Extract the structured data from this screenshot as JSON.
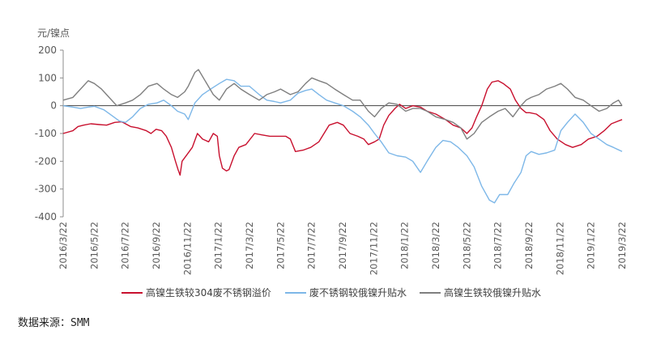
{
  "chart_data": {
    "type": "line",
    "y_unit_label": "元/镍点",
    "ylim": [
      -400,
      200
    ],
    "yticks": [
      200,
      100,
      0,
      -100,
      -200,
      -300,
      -400
    ],
    "x_range": [
      "2016-03-22",
      "2019-03-22"
    ],
    "x_tick_labels": [
      "2016/3/22",
      "2016/5/22",
      "2016/7/22",
      "2016/9/22",
      "2016/11/22",
      "2017/1/22",
      "2017/3/22",
      "2017/5/22",
      "2017/7/22",
      "2017/9/22",
      "2017/11/22",
      "2018/1/22",
      "2018/3/22",
      "2018/5/22",
      "2018/7/22",
      "2018/9/22",
      "2018/11/22",
      "2019/1/22",
      "2019/3/22"
    ],
    "grid": false,
    "legend_position": "bottom",
    "series": [
      {
        "name": "高镍生铁较304废不锈钢溢价",
        "color": "#c8102e",
        "points": [
          [
            "2016-03-22",
            -100
          ],
          [
            "2016-04-10",
            -90
          ],
          [
            "2016-04-20",
            -75
          ],
          [
            "2016-05-01",
            -70
          ],
          [
            "2016-05-15",
            -65
          ],
          [
            "2016-06-01",
            -68
          ],
          [
            "2016-06-15",
            -70
          ],
          [
            "2016-07-01",
            -60
          ],
          [
            "2016-07-15",
            -58
          ],
          [
            "2016-08-01",
            -75
          ],
          [
            "2016-08-15",
            -80
          ],
          [
            "2016-09-01",
            -90
          ],
          [
            "2016-09-10",
            -100
          ],
          [
            "2016-09-20",
            -85
          ],
          [
            "2016-10-01",
            -90
          ],
          [
            "2016-10-10",
            -110
          ],
          [
            "2016-10-20",
            -150
          ],
          [
            "2016-10-28",
            -200
          ],
          [
            "2016-11-02",
            -230
          ],
          [
            "2016-11-06",
            -250
          ],
          [
            "2016-11-10",
            -200
          ],
          [
            "2016-11-20",
            -175
          ],
          [
            "2016-11-30",
            -150
          ],
          [
            "2016-12-10",
            -100
          ],
          [
            "2016-12-20",
            -120
          ],
          [
            "2017-01-01",
            -130
          ],
          [
            "2017-01-10",
            -100
          ],
          [
            "2017-01-18",
            -110
          ],
          [
            "2017-01-22",
            -180
          ],
          [
            "2017-01-28",
            -225
          ],
          [
            "2017-02-05",
            -235
          ],
          [
            "2017-02-10",
            -230
          ],
          [
            "2017-02-20",
            -180
          ],
          [
            "2017-03-01",
            -150
          ],
          [
            "2017-03-15",
            -140
          ],
          [
            "2017-04-01",
            -100
          ],
          [
            "2017-04-15",
            -105
          ],
          [
            "2017-05-01",
            -110
          ],
          [
            "2017-05-15",
            -110
          ],
          [
            "2017-06-01",
            -110
          ],
          [
            "2017-06-10",
            -120
          ],
          [
            "2017-06-20",
            -165
          ],
          [
            "2017-07-05",
            -160
          ],
          [
            "2017-07-20",
            -150
          ],
          [
            "2017-08-05",
            -130
          ],
          [
            "2017-08-15",
            -100
          ],
          [
            "2017-08-25",
            -70
          ],
          [
            "2017-09-10",
            -60
          ],
          [
            "2017-09-22",
            -70
          ],
          [
            "2017-10-05",
            -100
          ],
          [
            "2017-10-20",
            -110
          ],
          [
            "2017-11-01",
            -120
          ],
          [
            "2017-11-10",
            -140
          ],
          [
            "2017-11-22",
            -130
          ],
          [
            "2017-12-01",
            -120
          ],
          [
            "2017-12-10",
            -70
          ],
          [
            "2017-12-20",
            -35
          ],
          [
            "2018-01-01",
            -10
          ],
          [
            "2018-01-10",
            5
          ],
          [
            "2018-01-22",
            -10
          ],
          [
            "2018-02-05",
            0
          ],
          [
            "2018-02-20",
            -5
          ],
          [
            "2018-03-05",
            -20
          ],
          [
            "2018-03-22",
            -30
          ],
          [
            "2018-04-10",
            -50
          ],
          [
            "2018-04-25",
            -70
          ],
          [
            "2018-05-10",
            -80
          ],
          [
            "2018-05-22",
            -100
          ],
          [
            "2018-06-01",
            -80
          ],
          [
            "2018-06-10",
            -40
          ],
          [
            "2018-06-20",
            0
          ],
          [
            "2018-07-01",
            60
          ],
          [
            "2018-07-10",
            85
          ],
          [
            "2018-07-22",
            90
          ],
          [
            "2018-08-01",
            80
          ],
          [
            "2018-08-15",
            60
          ],
          [
            "2018-08-25",
            20
          ],
          [
            "2018-09-05",
            -10
          ],
          [
            "2018-09-15",
            -25
          ],
          [
            "2018-09-22",
            -25
          ],
          [
            "2018-10-05",
            -30
          ],
          [
            "2018-10-20",
            -50
          ],
          [
            "2018-11-01",
            -90
          ],
          [
            "2018-11-15",
            -120
          ],
          [
            "2018-12-01",
            -140
          ],
          [
            "2018-12-15",
            -150
          ],
          [
            "2019-01-01",
            -140
          ],
          [
            "2019-01-15",
            -120
          ],
          [
            "2019-02-01",
            -110
          ],
          [
            "2019-02-15",
            -90
          ],
          [
            "2019-03-01",
            -65
          ],
          [
            "2019-03-22",
            -50
          ]
        ]
      },
      {
        "name": "废不锈钢较俄镍升贴水",
        "color": "#7db7e8",
        "points": [
          [
            "2016-03-22",
            0
          ],
          [
            "2016-04-10",
            -5
          ],
          [
            "2016-04-25",
            -10
          ],
          [
            "2016-05-10",
            -5
          ],
          [
            "2016-05-22",
            -2
          ],
          [
            "2016-06-10",
            -15
          ],
          [
            "2016-06-25",
            -35
          ],
          [
            "2016-07-10",
            -55
          ],
          [
            "2016-07-22",
            -60
          ],
          [
            "2016-08-05",
            -40
          ],
          [
            "2016-08-20",
            -10
          ],
          [
            "2016-09-05",
            5
          ],
          [
            "2016-09-22",
            10
          ],
          [
            "2016-10-05",
            20
          ],
          [
            "2016-10-20",
            0
          ],
          [
            "2016-11-01",
            -20
          ],
          [
            "2016-11-15",
            -30
          ],
          [
            "2016-11-22",
            -50
          ],
          [
            "2016-12-05",
            10
          ],
          [
            "2016-12-20",
            40
          ],
          [
            "2017-01-05",
            60
          ],
          [
            "2017-01-22",
            80
          ],
          [
            "2017-02-05",
            95
          ],
          [
            "2017-02-20",
            90
          ],
          [
            "2017-03-05",
            70
          ],
          [
            "2017-03-22",
            70
          ],
          [
            "2017-04-10",
            40
          ],
          [
            "2017-04-25",
            20
          ],
          [
            "2017-05-10",
            15
          ],
          [
            "2017-05-22",
            10
          ],
          [
            "2017-06-10",
            20
          ],
          [
            "2017-06-25",
            45
          ],
          [
            "2017-07-10",
            55
          ],
          [
            "2017-07-22",
            60
          ],
          [
            "2017-08-05",
            40
          ],
          [
            "2017-08-20",
            20
          ],
          [
            "2017-09-05",
            10
          ],
          [
            "2017-09-22",
            0
          ],
          [
            "2017-10-10",
            -20
          ],
          [
            "2017-10-25",
            -40
          ],
          [
            "2017-11-10",
            -70
          ],
          [
            "2017-11-22",
            -100
          ],
          [
            "2017-12-05",
            -130
          ],
          [
            "2017-12-20",
            -170
          ],
          [
            "2018-01-05",
            -180
          ],
          [
            "2018-01-22",
            -185
          ],
          [
            "2018-02-05",
            -200
          ],
          [
            "2018-02-20",
            -240
          ],
          [
            "2018-03-05",
            -200
          ],
          [
            "2018-03-22",
            -150
          ],
          [
            "2018-04-05",
            -125
          ],
          [
            "2018-04-20",
            -130
          ],
          [
            "2018-05-05",
            -150
          ],
          [
            "2018-05-22",
            -180
          ],
          [
            "2018-06-05",
            -220
          ],
          [
            "2018-06-20",
            -290
          ],
          [
            "2018-07-05",
            -340
          ],
          [
            "2018-07-15",
            -350
          ],
          [
            "2018-07-25",
            -320
          ],
          [
            "2018-08-10",
            -320
          ],
          [
            "2018-08-22",
            -280
          ],
          [
            "2018-09-05",
            -240
          ],
          [
            "2018-09-15",
            -180
          ],
          [
            "2018-09-25",
            -165
          ],
          [
            "2018-10-10",
            -175
          ],
          [
            "2018-10-25",
            -170
          ],
          [
            "2018-11-10",
            -160
          ],
          [
            "2018-11-22",
            -90
          ],
          [
            "2018-12-05",
            -60
          ],
          [
            "2018-12-20",
            -30
          ],
          [
            "2019-01-05",
            -60
          ],
          [
            "2019-01-20",
            -100
          ],
          [
            "2019-02-05",
            -120
          ],
          [
            "2019-02-20",
            -140
          ],
          [
            "2019-03-05",
            -150
          ],
          [
            "2019-03-22",
            -165
          ]
        ]
      },
      {
        "name": "高镍生铁较俄镍升贴水",
        "color": "#7f7f7f",
        "points": [
          [
            "2016-03-22",
            20
          ],
          [
            "2016-04-10",
            30
          ],
          [
            "2016-04-25",
            60
          ],
          [
            "2016-05-10",
            90
          ],
          [
            "2016-05-22",
            80
          ],
          [
            "2016-06-05",
            60
          ],
          [
            "2016-06-20",
            30
          ],
          [
            "2016-07-05",
            0
          ],
          [
            "2016-07-22",
            10
          ],
          [
            "2016-08-05",
            20
          ],
          [
            "2016-08-20",
            40
          ],
          [
            "2016-09-05",
            70
          ],
          [
            "2016-09-22",
            80
          ],
          [
            "2016-10-05",
            60
          ],
          [
            "2016-10-20",
            40
          ],
          [
            "2016-11-01",
            30
          ],
          [
            "2016-11-15",
            50
          ],
          [
            "2016-11-22",
            70
          ],
          [
            "2016-12-05",
            120
          ],
          [
            "2016-12-12",
            130
          ],
          [
            "2016-12-25",
            90
          ],
          [
            "2017-01-10",
            40
          ],
          [
            "2017-01-22",
            20
          ],
          [
            "2017-02-05",
            60
          ],
          [
            "2017-02-20",
            80
          ],
          [
            "2017-03-05",
            60
          ],
          [
            "2017-03-22",
            40
          ],
          [
            "2017-04-10",
            20
          ],
          [
            "2017-04-25",
            40
          ],
          [
            "2017-05-10",
            50
          ],
          [
            "2017-05-22",
            60
          ],
          [
            "2017-06-10",
            40
          ],
          [
            "2017-06-25",
            50
          ],
          [
            "2017-07-10",
            80
          ],
          [
            "2017-07-22",
            100
          ],
          [
            "2017-08-05",
            90
          ],
          [
            "2017-08-20",
            80
          ],
          [
            "2017-09-05",
            60
          ],
          [
            "2017-09-22",
            40
          ],
          [
            "2017-10-10",
            20
          ],
          [
            "2017-10-25",
            20
          ],
          [
            "2017-11-10",
            -20
          ],
          [
            "2017-11-22",
            -40
          ],
          [
            "2017-12-05",
            -10
          ],
          [
            "2017-12-20",
            10
          ],
          [
            "2018-01-05",
            5
          ],
          [
            "2018-01-22",
            -20
          ],
          [
            "2018-02-05",
            -10
          ],
          [
            "2018-02-20",
            -10
          ],
          [
            "2018-03-05",
            -20
          ],
          [
            "2018-03-22",
            -40
          ],
          [
            "2018-04-10",
            -50
          ],
          [
            "2018-04-25",
            -60
          ],
          [
            "2018-05-10",
            -80
          ],
          [
            "2018-05-22",
            -120
          ],
          [
            "2018-06-05",
            -100
          ],
          [
            "2018-06-20",
            -60
          ],
          [
            "2018-07-05",
            -40
          ],
          [
            "2018-07-22",
            -20
          ],
          [
            "2018-08-05",
            -10
          ],
          [
            "2018-08-20",
            -40
          ],
          [
            "2018-09-05",
            0
          ],
          [
            "2018-09-15",
            20
          ],
          [
            "2018-09-25",
            30
          ],
          [
            "2018-10-10",
            40
          ],
          [
            "2018-10-25",
            60
          ],
          [
            "2018-11-10",
            70
          ],
          [
            "2018-11-22",
            80
          ],
          [
            "2018-12-05",
            60
          ],
          [
            "2018-12-20",
            30
          ],
          [
            "2019-01-05",
            20
          ],
          [
            "2019-01-20",
            0
          ],
          [
            "2019-02-05",
            -20
          ],
          [
            "2019-02-20",
            -10
          ],
          [
            "2019-03-05",
            10
          ],
          [
            "2019-03-15",
            20
          ],
          [
            "2019-03-22",
            0
          ]
        ]
      }
    ]
  },
  "footer": {
    "source": "数据来源：SMM"
  }
}
